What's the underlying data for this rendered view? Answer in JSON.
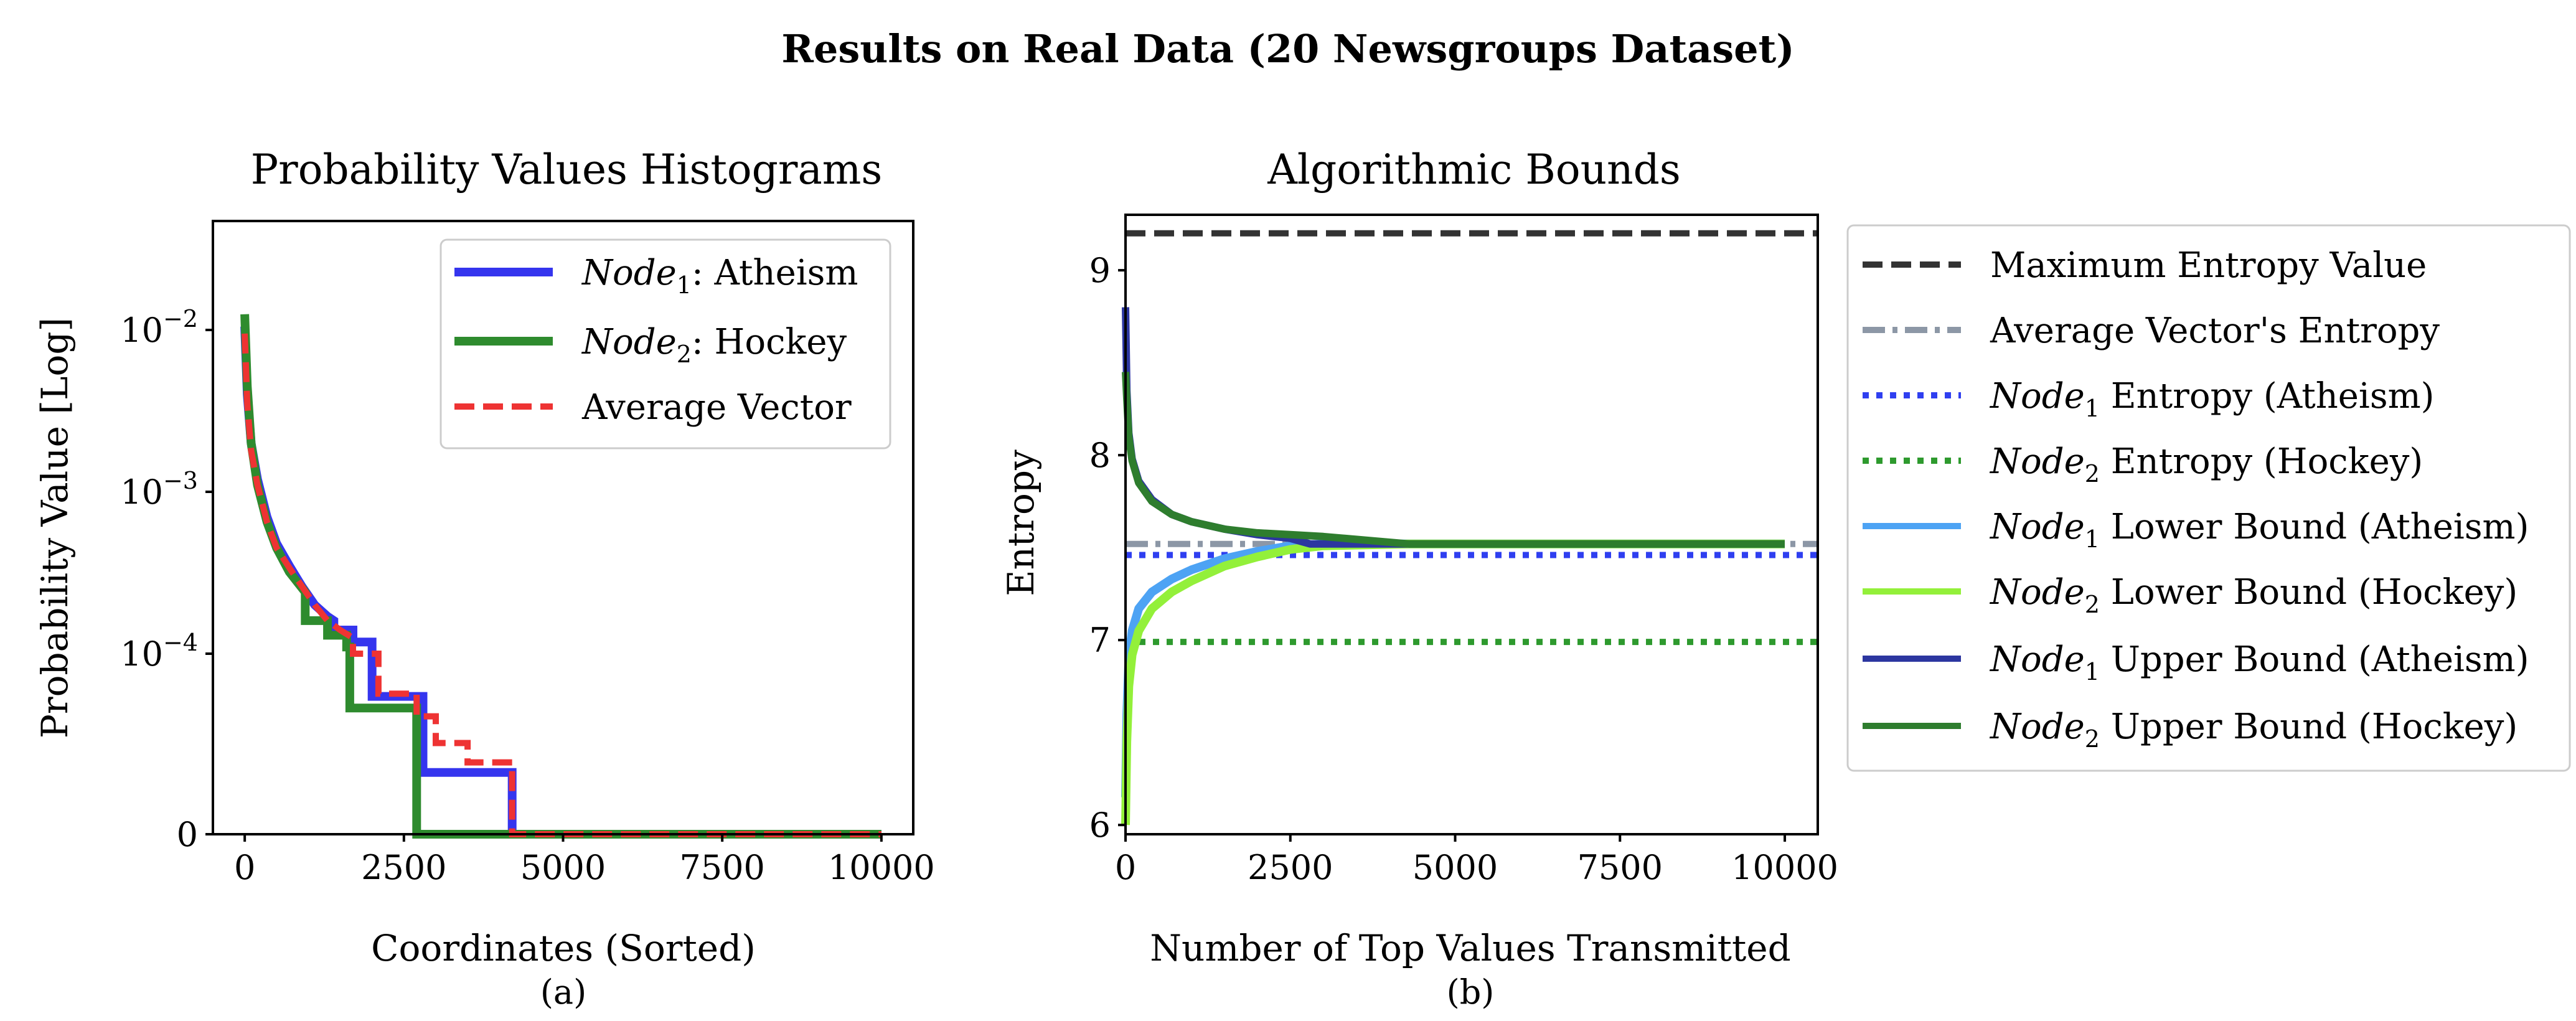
{
  "figure": {
    "title": "Results on Real Data (20 Newsgroups Dataset)"
  },
  "colors": {
    "node1": "#3535ee",
    "node2": "#2e8b2e",
    "average": "#ee3333",
    "max_entropy": "#333333",
    "avg_entropy": "#8c97a6",
    "node1_entropy": "#2f3ff0",
    "node2_entropy": "#2e9a2e",
    "node1_lower": "#4da3f4",
    "node2_lower": "#93f03a",
    "node1_upper": "#2c36a0",
    "node2_upper": "#2e7d2e"
  },
  "chart_data": [
    {
      "type": "line",
      "title": "Probability Values Histograms",
      "xlabel": "Coordinates (Sorted)",
      "ylabel": "Probability Value [Log]",
      "caption": "(a)",
      "yscale": "log",
      "xlim": [
        -500,
        10500
      ],
      "xticks": [
        0,
        2500,
        5000,
        7500,
        10000
      ],
      "xtick_labels": [
        "0",
        "2500",
        "5000",
        "7500",
        "10000"
      ],
      "ytick_labels": [
        "0",
        "10",
        "10",
        "10"
      ],
      "ytick_exponents": [
        "",
        "−4",
        "−3",
        "−2"
      ],
      "legend_position": "top-right",
      "series": [
        {
          "name_italic": "Node",
          "name_sub": "1",
          "name_rest": ": Atheism",
          "style": "solid",
          "x": [
            0,
            40,
            100,
            200,
            350,
            500,
            700,
            900,
            1100,
            1300,
            1400,
            1400,
            1700,
            1700,
            2000,
            2000,
            2800,
            2800,
            4200,
            4200,
            10000
          ],
          "y": [
            0.0105,
            0.004,
            0.002,
            0.0012,
            0.0007,
            0.00048,
            0.00035,
            0.00026,
            0.0002,
            0.00017,
            0.00016,
            0.00014,
            0.00014,
            0.000118,
            0.000118,
            5.8e-05,
            5.8e-05,
            2.2e-05,
            2.2e-05,
            0,
            0
          ]
        },
        {
          "name_italic": "Node",
          "name_sub": "2",
          "name_rest": ": Hockey",
          "style": "solid",
          "x": [
            0,
            40,
            100,
            200,
            350,
            500,
            700,
            950,
            950,
            1300,
            1300,
            1600,
            1600,
            1650,
            1650,
            2700,
            2700,
            10000
          ],
          "y": [
            0.0125,
            0.0045,
            0.002,
            0.0011,
            0.00065,
            0.00045,
            0.00032,
            0.00024,
            0.00016,
            0.00016,
            0.00013,
            0.00013,
            0.00011,
            0.00011,
            5e-05,
            5e-05,
            0,
            0
          ]
        },
        {
          "name": "Average Vector",
          "style": "dashed",
          "x": [
            0,
            40,
            100,
            200,
            350,
            500,
            700,
            900,
            1100,
            1300,
            1500,
            1700,
            1700,
            2100,
            2100,
            2700,
            2700,
            3000,
            3000,
            3500,
            3500,
            4200,
            4200,
            5200,
            5200,
            10000
          ],
          "y": [
            0.0095,
            0.0035,
            0.0018,
            0.0011,
            0.00065,
            0.00045,
            0.00034,
            0.00026,
            0.0002,
            0.00016,
            0.00014,
            0.000125,
            0.0001,
            0.0001,
            6e-05,
            6e-05,
            4.5e-05,
            4.5e-05,
            3.2e-05,
            3.2e-05,
            2.5e-05,
            2.5e-05,
            1e-05,
            1e-05,
            0,
            0
          ]
        }
      ]
    },
    {
      "type": "line",
      "title": "Algorithmic Bounds",
      "xlabel": "Number of Top Values Transmitted",
      "ylabel": "Entropy",
      "caption": "(b)",
      "xlim": [
        0,
        10500
      ],
      "ylim": [
        5.95,
        9.3
      ],
      "xticks": [
        0,
        2500,
        5000,
        7500,
        10000
      ],
      "xtick_labels": [
        "0",
        "2500",
        "5000",
        "7500",
        "10000"
      ],
      "yticks": [
        6,
        7,
        8,
        9
      ],
      "ytick_labels": [
        "6",
        "7",
        "8",
        "9"
      ],
      "legend_position": "outside-right",
      "series": [
        {
          "name": "Maximum Entropy Value",
          "style": "dashed",
          "x": [
            0,
            10500
          ],
          "y": [
            9.2,
            9.2
          ]
        },
        {
          "name": "Average Vector's Entropy",
          "style": "dashdot",
          "x": [
            0,
            10500
          ],
          "y": [
            7.52,
            7.52
          ]
        },
        {
          "name_italic": "Node",
          "name_sub": "1",
          "name_rest": " Entropy (Atheism)",
          "style": "dotted",
          "x": [
            0,
            10500
          ],
          "y": [
            7.46,
            7.46
          ]
        },
        {
          "name_italic": "Node",
          "name_sub": "2",
          "name_rest": " Entropy (Hockey)",
          "style": "dotted",
          "x": [
            0,
            10500
          ],
          "y": [
            6.99,
            6.99
          ]
        },
        {
          "name_italic": "Node",
          "name_sub": "1",
          "name_rest": " Lower Bound (Atheism)",
          "style": "solid",
          "x": [
            0,
            20,
            50,
            100,
            200,
            400,
            700,
            1000,
            1500,
            2000,
            2500,
            3000,
            4300,
            10000
          ],
          "y": [
            6.15,
            6.6,
            6.9,
            7.05,
            7.17,
            7.26,
            7.33,
            7.38,
            7.44,
            7.48,
            7.51,
            7.52,
            7.52,
            7.52
          ]
        },
        {
          "name_italic": "Node",
          "name_sub": "2",
          "name_rest": " Lower Bound (Hockey)",
          "style": "solid",
          "x": [
            0,
            20,
            50,
            100,
            200,
            400,
            700,
            1000,
            1500,
            2000,
            2500,
            3000,
            4300,
            10000
          ],
          "y": [
            6.0,
            6.45,
            6.75,
            6.92,
            7.05,
            7.17,
            7.26,
            7.32,
            7.4,
            7.45,
            7.49,
            7.51,
            7.52,
            7.52
          ]
        },
        {
          "name_italic": "Node",
          "name_sub": "1",
          "name_rest": " Upper Bound (Atheism)",
          "style": "solid",
          "x": [
            0,
            20,
            50,
            100,
            200,
            400,
            700,
            1000,
            1500,
            2000,
            2500,
            2800,
            4300,
            10000
          ],
          "y": [
            8.8,
            8.35,
            8.12,
            7.98,
            7.86,
            7.76,
            7.68,
            7.64,
            7.6,
            7.57,
            7.55,
            7.52,
            7.52,
            7.52
          ]
        },
        {
          "name_italic": "Node",
          "name_sub": "2",
          "name_rest": " Upper Bound (Hockey)",
          "style": "solid",
          "x": [
            0,
            20,
            50,
            100,
            200,
            400,
            700,
            1000,
            1500,
            2000,
            2500,
            3000,
            4300,
            10000
          ],
          "y": [
            8.45,
            8.3,
            8.1,
            7.97,
            7.85,
            7.75,
            7.68,
            7.64,
            7.6,
            7.58,
            7.57,
            7.56,
            7.52,
            7.52
          ]
        }
      ]
    }
  ]
}
